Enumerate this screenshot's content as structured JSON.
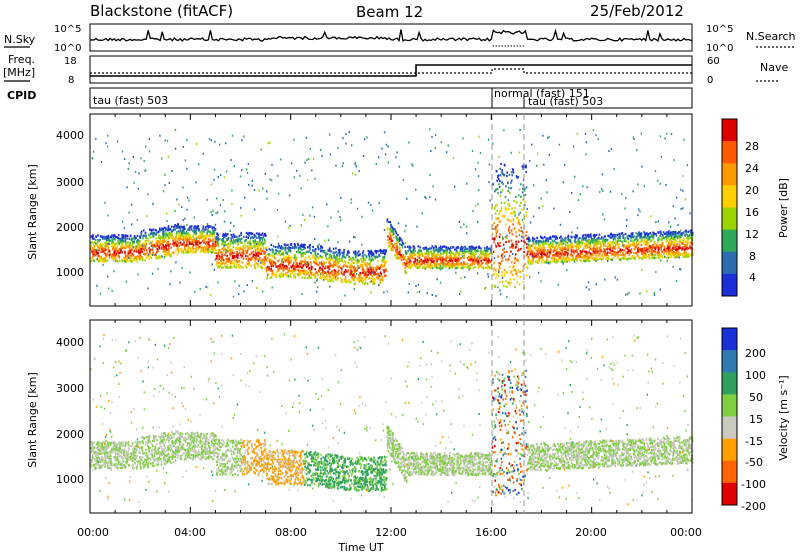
{
  "header": {
    "station": "Blackstone (fitACF)",
    "beam": "Beam 12",
    "date": "25/Feb/2012"
  },
  "noise_panel": {
    "left_label": "N.Sky",
    "left_ticks": [
      "10^5",
      "10^0"
    ],
    "right_label": "N.Search",
    "right_ticks": [
      "10^5",
      "10^0"
    ]
  },
  "freq_panel": {
    "left_label_line1": "Freq.",
    "left_label_line2": "[MHz]",
    "left_ticks": [
      "18",
      "8"
    ],
    "right_label": "Nave",
    "right_ticks": [
      "60",
      "0"
    ]
  },
  "cpid_panel": {
    "label": "CPID",
    "segments": [
      "tau (fast) 503",
      "normal (fast) 151",
      "tau (fast) 503"
    ]
  },
  "range_axis": {
    "label": "Slant Range [km]",
    "ticks": [
      "4000",
      "3000",
      "2000",
      "1000"
    ]
  },
  "time_axis": {
    "label": "Time UT",
    "ticks": [
      "00:00",
      "04:00",
      "08:00",
      "12:00",
      "16:00",
      "20:00",
      "00:00"
    ]
  },
  "power_scale": {
    "label": "Power [dB]",
    "ticks": [
      "28",
      "24",
      "20",
      "16",
      "12",
      "8",
      "4"
    ],
    "colors": [
      "#dd0000",
      "#ff5a00",
      "#ff9900",
      "#ffd000",
      "#9bd400",
      "#2fa85a",
      "#2c6db0",
      "#1a2fd8"
    ]
  },
  "velocity_scale": {
    "label": "Velocity [m s⁻¹]",
    "ticks": [
      "200",
      "100",
      "50",
      "15",
      "-15",
      "-50",
      "-100",
      "-200"
    ],
    "colors": [
      "#1a30d8",
      "#2f7ab3",
      "#2fa060",
      "#7fd040",
      "#c9c9c0",
      "#ffa000",
      "#ff6400",
      "#e00000"
    ]
  },
  "chart_data": {
    "type": "heatmap",
    "x_range_hours": [
      0,
      24
    ],
    "y_range_km": [
      180,
      4500
    ],
    "power_range_db": [
      0,
      30
    ],
    "velocity_range_ms": [
      -250,
      250
    ],
    "mode_changes_ut": [
      "16:00",
      "17:24"
    ],
    "frequency_step_ut": "13:00"
  }
}
